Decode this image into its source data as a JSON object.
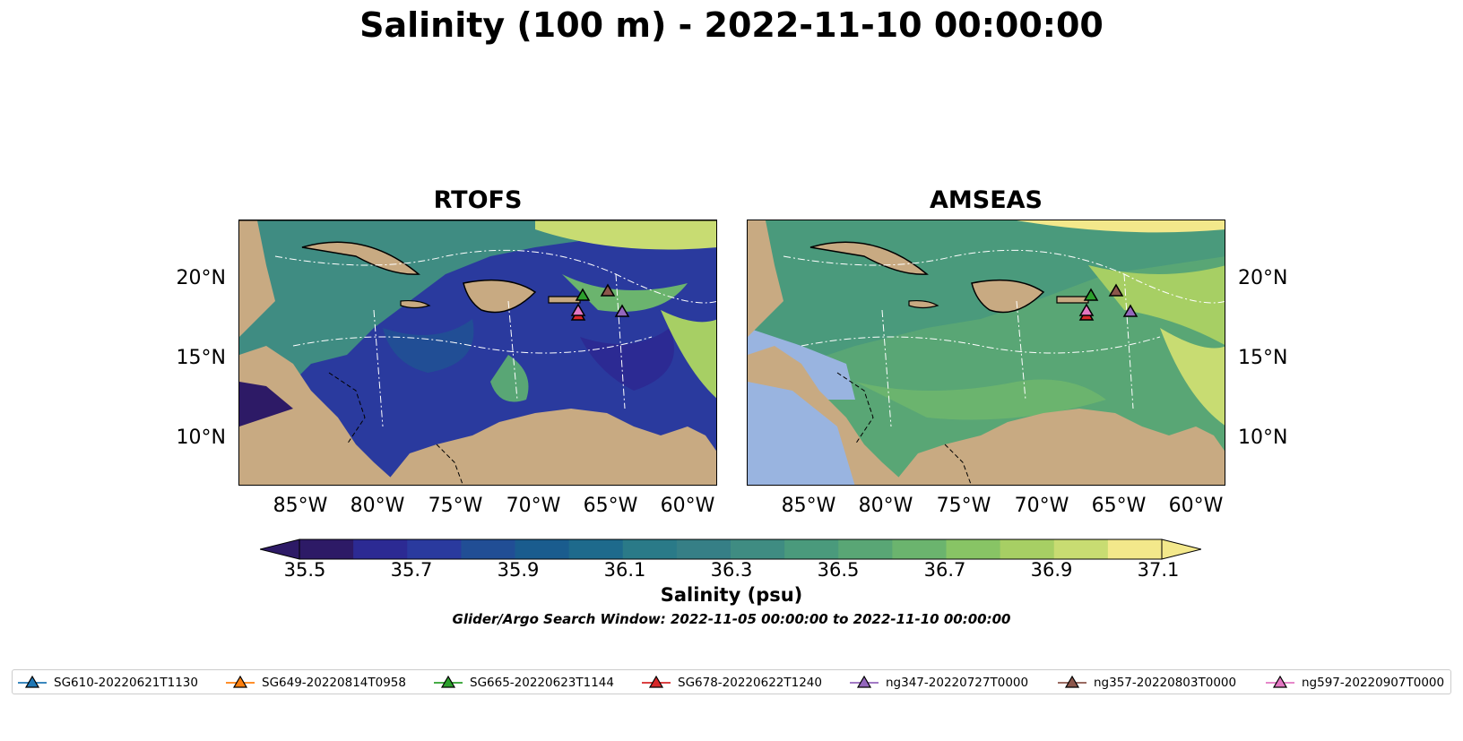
{
  "title": "Salinity (100 m) - 2022-11-10 00:00:00",
  "panels": [
    {
      "title": "RTOFS"
    },
    {
      "title": "AMSEAS"
    }
  ],
  "lat_ticks": [
    "20°N",
    "15°N",
    "10°N"
  ],
  "lon_ticks": [
    "85°W",
    "80°W",
    "75°W",
    "70°W",
    "65°W",
    "60°W"
  ],
  "colorbar": {
    "label": "Salinity (psu)",
    "ticks": [
      "35.5",
      "35.7",
      "35.9",
      "36.1",
      "36.3",
      "36.5",
      "36.7",
      "36.9",
      "37.1"
    ],
    "colors": [
      "#2d1a66",
      "#2c2a93",
      "#2a3a9e",
      "#214e95",
      "#1a5c8e",
      "#1e6a8c",
      "#2a7a88",
      "#367f86",
      "#3f8c82",
      "#4a9a7c",
      "#59a675",
      "#6bb46e",
      "#88c465",
      "#a7cf64",
      "#c8dc72",
      "#f3e88b"
    ]
  },
  "search_window": "Glider/Argo Search Window: 2022-11-05 00:00:00 to 2022-11-10 00:00:00",
  "legend": [
    {
      "label": "SG610-20220621T1130",
      "color": "#1f77b4"
    },
    {
      "label": "SG649-20220814T0958",
      "color": "#ff7f0e"
    },
    {
      "label": "SG665-20220623T1144",
      "color": "#2ca02c"
    },
    {
      "label": "SG678-20220622T1240",
      "color": "#d62728"
    },
    {
      "label": "ng347-20220727T0000",
      "color": "#9467bd"
    },
    {
      "label": "ng357-20220803T0000",
      "color": "#8c564b"
    },
    {
      "label": "ng597-20220907T0000",
      "color": "#e377c2"
    }
  ],
  "chart_data": {
    "type": "heatmap",
    "title": "Salinity (100 m) - 2022-11-10 00:00:00",
    "variable": "Salinity (psu)",
    "value_range": [
      35.5,
      37.1
    ],
    "lon_range": [
      -89,
      -58.5
    ],
    "lat_range": [
      7,
      24
    ],
    "panels": [
      "RTOFS",
      "AMSEAS"
    ],
    "markers": [
      {
        "name": "SG665-20220623T1144",
        "lon": -67.0,
        "lat": 18.8
      },
      {
        "name": "ng357-20220803T0000",
        "lon": -65.2,
        "lat": 19.2
      },
      {
        "name": "ng347-20220727T0000",
        "lon": -64.2,
        "lat": 17.9
      },
      {
        "name": "SG678-20220622T1240",
        "lon": -67.4,
        "lat": 17.6
      },
      {
        "name": "ng597-20220907T0000",
        "lon": -67.4,
        "lat": 17.9
      }
    ]
  }
}
